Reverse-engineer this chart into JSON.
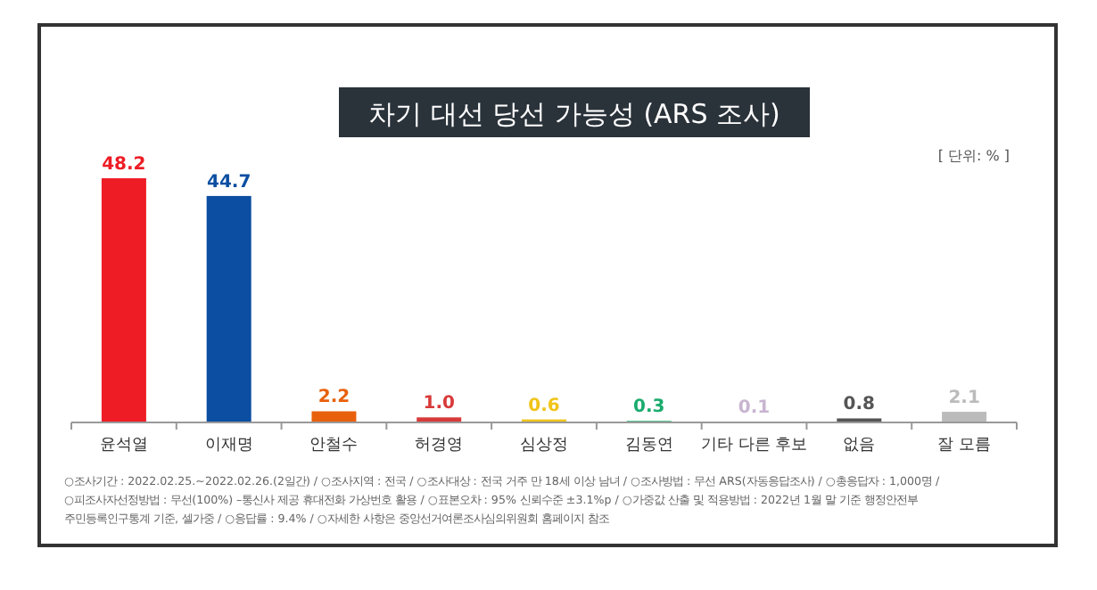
{
  "chart_data": {
    "type": "bar",
    "title": "차기 대선 당선 가능성 (ARS 조사)",
    "subtitle": "[ 단위: % ]",
    "categories": [
      "윤석열",
      "이재명",
      "안철수",
      "허경영",
      "심상정",
      "김동연",
      "기타 다른 후보",
      "없음",
      "잘 모름"
    ],
    "values": [
      48.2,
      44.7,
      2.2,
      1.0,
      0.6,
      0.3,
      0.1,
      0.8,
      2.1
    ],
    "colors": [
      "#ee1c25",
      "#0b4ea2",
      "#e8600c",
      "#d83a3a",
      "#f0c419",
      "#1aab6e",
      "#c8b4d0",
      "#555555",
      "#bbbbbb"
    ],
    "value_labels": [
      "48.2",
      "44.7",
      "2.2",
      "1.0",
      "0.6",
      "0.3",
      "0.1",
      "0.8",
      "2.1"
    ],
    "annotations": [
      "○조사기간 : 2022.02.25.~2022.02.26.(2일간) / ○조사지역 : 전국 / ○조사대상 : 전국 거주 만 18세 이상 남녀 / ○조사방법 : 무선 ARS(자동응답조사) / ○총응답자 : 1,000명 /",
      "○피조사자선정방법 : 무선(100%) –통신사 제공 휴대전화 가상번호 활용 / ○표본오차 : 95% 신뢰수준 ±3.1%p / ○가중값 산출 및 적용방법 : 2022년 1월 말 기준 행정안전부",
      "주민등록인구통계 기준, 셀가중 / ○응답률 : 9.4% / ○자세한 사항은 중앙선거여론조사심의위원회 홈페이지 참조"
    ]
  }
}
